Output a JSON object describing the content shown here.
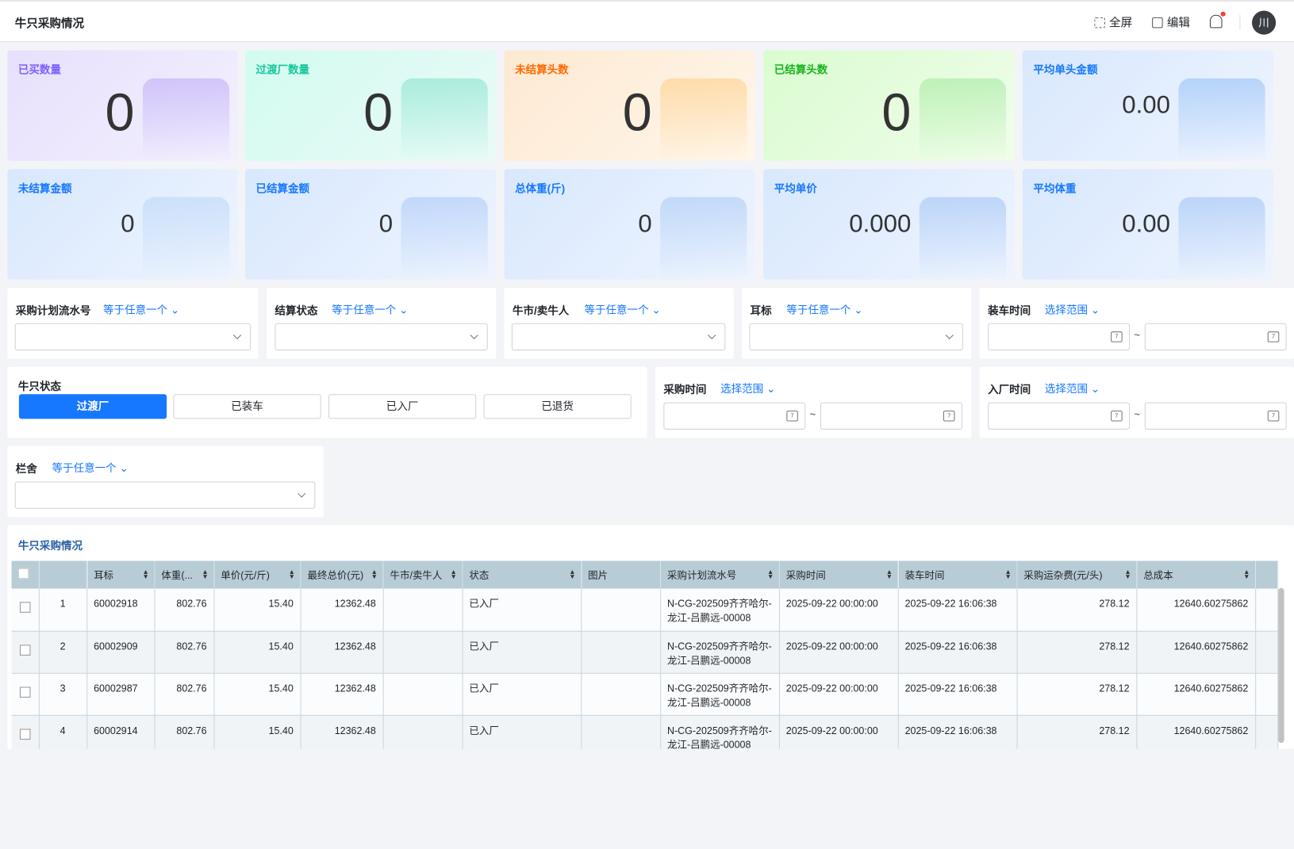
{
  "header": {
    "title": "牛只采购情况",
    "fullscreen": "全屏",
    "edit": "编辑",
    "avatar": "川"
  },
  "cards": [
    {
      "label": "已买数量",
      "value": "0",
      "color": "#7b61ff",
      "bg": "linear-gradient(135deg,#e7e0fd,#f3f0fd)",
      "ill": "#b9a6f7"
    },
    {
      "label": "过渡厂数量",
      "value": "0",
      "color": "#16c79a",
      "bg": "linear-gradient(135deg,#d2fbf0,#eafaf7)",
      "ill": "#7fe0cb"
    },
    {
      "label": "未结算头数",
      "value": "0",
      "color": "#ff6a00",
      "bg": "linear-gradient(135deg,#fde9d2,#fff6ea)",
      "ill": "#ffcc80"
    },
    {
      "label": "已结算头数",
      "value": "0",
      "color": "#19b31f",
      "bg": "linear-gradient(135deg,#dafcd0,#f0fdea)",
      "ill": "#9ee89a"
    },
    {
      "label": "平均单头金额",
      "value": "0.00",
      "color": "#1677ff",
      "bg": "linear-gradient(135deg,#d8e8fd,#eef4fe)",
      "ill": "#8fbcf7"
    },
    {
      "label": "未结算金额",
      "value": "0",
      "color": "#1677ff",
      "bg": "linear-gradient(135deg,#d8e8fd,#eef4fe)",
      "ill": "#b8d5f7"
    },
    {
      "label": "已结算金额",
      "value": "0",
      "color": "#1677ff",
      "bg": "linear-gradient(135deg,#d8e8fd,#eef4fe)",
      "ill": "#a6c6f7"
    },
    {
      "label": "总体重(斤)",
      "value": "0",
      "color": "#1677ff",
      "bg": "linear-gradient(135deg,#d8e8fd,#eef4fe)",
      "ill": "#a6c8f4"
    },
    {
      "label": "平均单价",
      "value": "0.000",
      "color": "#1677ff",
      "bg": "linear-gradient(135deg,#d8e8fd,#eef4fe)",
      "ill": "#9cc0f4"
    },
    {
      "label": "平均体重",
      "value": "0.00",
      "color": "#1677ff",
      "bg": "linear-gradient(135deg,#d8e8fd,#eef4fe)",
      "ill": "#9cc0f4"
    }
  ],
  "filters": {
    "plan_no": {
      "label": "采购计划流水号",
      "op": "等于任意一个"
    },
    "settle": {
      "label": "结算状态",
      "op": "等于任意一个"
    },
    "seller": {
      "label": "牛市/卖牛人",
      "op": "等于任意一个"
    },
    "eartag": {
      "label": "耳标",
      "op": "等于任意一个"
    },
    "load_time": {
      "label": "装车时间",
      "op": "选择范围"
    },
    "cattle_status": {
      "label": "牛只状态",
      "options": [
        "过渡厂",
        "已装车",
        "已入厂",
        "已退货"
      ],
      "selected": "过渡厂"
    },
    "buy_time": {
      "label": "采购时间",
      "op": "选择范围"
    },
    "enter_time": {
      "label": "入厂时间",
      "op": "选择范围"
    },
    "pen": {
      "label": "栏舍",
      "op": "等于任意一个"
    },
    "tilde": "~",
    "cal": "7"
  },
  "table": {
    "title": "牛只采购情况",
    "columns": [
      "",
      "",
      "耳标",
      "体重(...",
      "单价(元/斤)",
      "最终总价(元)",
      "牛市/卖牛人",
      "状态",
      "图片",
      "采购计划流水号",
      "采购时间",
      "装车时间",
      "采购运杂费(元/头)",
      "总成本",
      ""
    ],
    "rows": [
      [
        "1",
        "60002918",
        "802.76",
        "15.40",
        "12362.48",
        "",
        "已入厂",
        "",
        "N-CG-202509齐齐哈尔-龙江-吕鹏远-00008",
        "2025-09-22 00:00:00",
        "2025-09-22 16:06:38",
        "278.12",
        "12640.60275862"
      ],
      [
        "2",
        "60002909",
        "802.76",
        "15.40",
        "12362.48",
        "",
        "已入厂",
        "",
        "N-CG-202509齐齐哈尔-龙江-吕鹏远-00008",
        "2025-09-22 00:00:00",
        "2025-09-22 16:06:38",
        "278.12",
        "12640.60275862"
      ],
      [
        "3",
        "60002987",
        "802.76",
        "15.40",
        "12362.48",
        "",
        "已入厂",
        "",
        "N-CG-202509齐齐哈尔-龙江-吕鹏远-00008",
        "2025-09-22 00:00:00",
        "2025-09-22 16:06:38",
        "278.12",
        "12640.60275862"
      ],
      [
        "4",
        "60002914",
        "802.76",
        "15.40",
        "12362.48",
        "",
        "已入厂",
        "",
        "N-CG-202509齐齐哈尔-龙江-吕鹏远-00008",
        "2025-09-22 00:00:00",
        "2025-09-22 16:06:38",
        "278.12",
        "12640.60275862"
      ]
    ]
  }
}
